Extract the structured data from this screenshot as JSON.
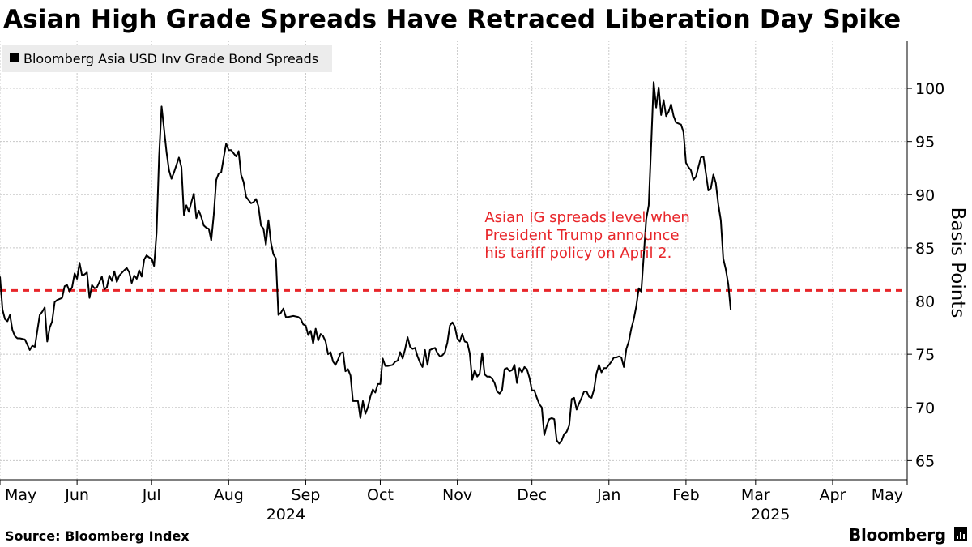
{
  "header": {
    "title": "Asian High Grade Spreads Have Retraced Liberation Day Spike"
  },
  "footer": {
    "source": "Source: Bloomberg Index",
    "brand": "Bloomberg"
  },
  "colors": {
    "line": "#000000",
    "reference": "#e8262a",
    "annotation": "#e8262a",
    "grid": "#c8c8c8",
    "legend_bg": "#ececec"
  },
  "chart_data": {
    "type": "line",
    "title": "Asian High Grade Spreads Have Retraced Liberation Day Spike",
    "legend": [
      "Bloomberg Asia USD Inv Grade Bond Spreads"
    ],
    "ylabel": "Basis Points",
    "ylim": [
      63,
      104
    ],
    "yticks": [
      65,
      70,
      75,
      80,
      85,
      90,
      95,
      100
    ],
    "xlim": [
      0,
      365
    ],
    "x_ticks": [
      {
        "day": 0,
        "label": "May"
      },
      {
        "day": 31,
        "label": "Jun"
      },
      {
        "day": 61,
        "label": "Jul"
      },
      {
        "day": 92,
        "label": "Aug"
      },
      {
        "day": 123,
        "label": "Sep"
      },
      {
        "day": 153,
        "label": "Oct"
      },
      {
        "day": 184,
        "label": "Nov"
      },
      {
        "day": 214,
        "label": "Dec"
      },
      {
        "day": 245,
        "label": "Jan"
      },
      {
        "day": 276,
        "label": "Feb"
      },
      {
        "day": 304,
        "label": "Mar"
      },
      {
        "day": 335,
        "label": "Apr"
      },
      {
        "day": 365,
        "label": "May"
      }
    ],
    "year_labels": [
      {
        "day": 115,
        "label": "2024"
      },
      {
        "day": 310,
        "label": "2025"
      }
    ],
    "reference_line": {
      "value": 81,
      "style": "dashed"
    },
    "annotation": {
      "lines": [
        "Asian IG spreads level when",
        "President Trump announce",
        "his tariff policy on April 2."
      ],
      "day": 195,
      "value": 86
    },
    "series": [
      {
        "name": "Bloomberg Asia USD Inv Grade Bond Spreads",
        "points": [
          [
            0,
            82.3
          ],
          [
            1,
            79.2
          ],
          [
            2,
            78.3
          ],
          [
            3,
            78.1
          ],
          [
            4,
            78.7
          ],
          [
            5,
            77.3
          ],
          [
            6,
            76.7
          ],
          [
            7,
            76.5
          ],
          [
            8,
            76.5
          ],
          [
            10,
            76.4
          ],
          [
            12,
            75.4
          ],
          [
            13,
            75.8
          ],
          [
            14,
            75.7
          ],
          [
            16,
            78.7
          ],
          [
            17,
            79.0
          ],
          [
            18,
            79.4
          ],
          [
            19,
            76.2
          ],
          [
            20,
            77.5
          ],
          [
            21,
            78.1
          ],
          [
            22,
            79.9
          ],
          [
            23,
            80.1
          ],
          [
            24,
            80.2
          ],
          [
            25,
            80.3
          ],
          [
            26,
            81.4
          ],
          [
            27,
            81.5
          ],
          [
            28,
            80.9
          ],
          [
            29,
            81.3
          ],
          [
            30,
            82.6
          ],
          [
            31,
            82.1
          ],
          [
            32,
            83.6
          ],
          [
            33,
            82.4
          ],
          [
            34,
            82.5
          ],
          [
            35,
            82.7
          ],
          [
            36,
            80.3
          ],
          [
            37,
            81.5
          ],
          [
            38,
            81.2
          ],
          [
            39,
            81.3
          ],
          [
            41,
            82.3
          ],
          [
            42,
            81.1
          ],
          [
            43,
            81.3
          ],
          [
            44,
            82.4
          ],
          [
            45,
            81.9
          ],
          [
            46,
            82.8
          ],
          [
            47,
            81.8
          ],
          [
            48,
            82.4
          ],
          [
            50,
            82.9
          ],
          [
            51,
            83.1
          ],
          [
            52,
            82.7
          ],
          [
            53,
            81.7
          ],
          [
            54,
            82.4
          ],
          [
            55,
            82.1
          ],
          [
            56,
            82.9
          ],
          [
            57,
            82.3
          ],
          [
            58,
            83.9
          ],
          [
            59,
            84.3
          ],
          [
            60,
            84.1
          ],
          [
            61,
            84.0
          ],
          [
            62,
            83.3
          ],
          [
            63,
            86.4
          ],
          [
            64,
            93.6
          ],
          [
            65,
            98.3
          ],
          [
            66,
            96.2
          ],
          [
            67,
            94.0
          ],
          [
            68,
            92.3
          ],
          [
            69,
            91.5
          ],
          [
            70,
            92.1
          ],
          [
            72,
            93.5
          ],
          [
            73,
            92.6
          ],
          [
            74,
            88.1
          ],
          [
            75,
            89.0
          ],
          [
            76,
            88.4
          ],
          [
            77,
            89.3
          ],
          [
            78,
            90.1
          ],
          [
            79,
            87.8
          ],
          [
            80,
            88.5
          ],
          [
            81,
            87.9
          ],
          [
            82,
            87.1
          ],
          [
            83,
            86.9
          ],
          [
            84,
            86.8
          ],
          [
            85,
            85.7
          ],
          [
            86,
            88.1
          ],
          [
            87,
            91.4
          ],
          [
            88,
            92.0
          ],
          [
            89,
            92.1
          ],
          [
            90,
            93.5
          ],
          [
            91,
            94.8
          ],
          [
            92,
            94.2
          ],
          [
            93,
            94.2
          ],
          [
            94,
            93.9
          ],
          [
            95,
            93.6
          ],
          [
            96,
            94.1
          ],
          [
            97,
            91.9
          ],
          [
            98,
            91.2
          ],
          [
            99,
            89.8
          ],
          [
            100,
            89.5
          ],
          [
            101,
            89.2
          ],
          [
            102,
            89.3
          ],
          [
            103,
            89.6
          ],
          [
            104,
            88.9
          ],
          [
            105,
            87.1
          ],
          [
            106,
            86.8
          ],
          [
            107,
            85.3
          ],
          [
            108,
            87.6
          ],
          [
            109,
            85.5
          ],
          [
            110,
            84.4
          ],
          [
            111,
            84.0
          ],
          [
            112,
            78.7
          ],
          [
            113,
            78.9
          ],
          [
            114,
            79.3
          ],
          [
            115,
            78.5
          ],
          [
            116,
            78.5
          ],
          [
            118,
            78.6
          ],
          [
            120,
            78.5
          ],
          [
            121,
            78.3
          ],
          [
            122,
            77.8
          ],
          [
            123,
            77.7
          ],
          [
            124,
            76.8
          ],
          [
            125,
            77.2
          ],
          [
            126,
            76.0
          ],
          [
            127,
            77.4
          ],
          [
            128,
            76.3
          ],
          [
            129,
            76.9
          ],
          [
            130,
            76.7
          ],
          [
            131,
            76.2
          ],
          [
            132,
            75.0
          ],
          [
            133,
            75.2
          ],
          [
            134,
            74.3
          ],
          [
            135,
            74.0
          ],
          [
            136,
            74.5
          ],
          [
            137,
            75.1
          ],
          [
            138,
            75.2
          ],
          [
            139,
            73.4
          ],
          [
            140,
            73.6
          ],
          [
            141,
            73.0
          ],
          [
            142,
            70.6
          ],
          [
            143,
            70.6
          ],
          [
            144,
            70.6
          ],
          [
            145,
            69.0
          ],
          [
            146,
            70.6
          ],
          [
            147,
            69.4
          ],
          [
            148,
            70.0
          ],
          [
            149,
            71.0
          ],
          [
            150,
            71.7
          ],
          [
            151,
            71.4
          ],
          [
            152,
            72.2
          ],
          [
            153,
            72.2
          ],
          [
            154,
            74.6
          ],
          [
            155,
            73.9
          ],
          [
            156,
            73.9
          ],
          [
            158,
            74.0
          ],
          [
            159,
            74.3
          ],
          [
            160,
            74.4
          ],
          [
            161,
            75.2
          ],
          [
            162,
            74.6
          ],
          [
            163,
            75.5
          ],
          [
            164,
            76.6
          ],
          [
            165,
            75.7
          ],
          [
            166,
            75.5
          ],
          [
            167,
            75.6
          ],
          [
            168,
            74.8
          ],
          [
            169,
            74.2
          ],
          [
            170,
            73.8
          ],
          [
            171,
            75.4
          ],
          [
            172,
            74.0
          ],
          [
            173,
            75.4
          ],
          [
            174,
            75.5
          ],
          [
            175,
            75.6
          ],
          [
            176,
            75.1
          ],
          [
            177,
            74.8
          ],
          [
            178,
            74.9
          ],
          [
            179,
            75.2
          ],
          [
            180,
            76.1
          ],
          [
            181,
            77.7
          ],
          [
            182,
            78.0
          ],
          [
            183,
            77.6
          ],
          [
            184,
            76.5
          ],
          [
            185,
            76.2
          ],
          [
            186,
            76.9
          ],
          [
            187,
            76.2
          ],
          [
            188,
            76.1
          ],
          [
            189,
            75.1
          ],
          [
            190,
            72.6
          ],
          [
            191,
            73.5
          ],
          [
            192,
            72.9
          ],
          [
            193,
            73.2
          ],
          [
            194,
            75.1
          ],
          [
            195,
            73.1
          ],
          [
            196,
            72.9
          ],
          [
            197,
            72.9
          ],
          [
            198,
            72.7
          ],
          [
            199,
            72.3
          ],
          [
            200,
            71.5
          ],
          [
            201,
            71.3
          ],
          [
            202,
            71.6
          ],
          [
            203,
            73.6
          ],
          [
            204,
            73.7
          ],
          [
            205,
            73.4
          ],
          [
            206,
            73.5
          ],
          [
            207,
            74.0
          ],
          [
            208,
            72.3
          ],
          [
            209,
            73.7
          ],
          [
            210,
            73.3
          ],
          [
            211,
            73.8
          ],
          [
            212,
            73.6
          ],
          [
            213,
            72.8
          ],
          [
            214,
            71.6
          ],
          [
            215,
            71.6
          ],
          [
            216,
            70.9
          ],
          [
            217,
            70.3
          ],
          [
            218,
            70.0
          ],
          [
            219,
            67.4
          ],
          [
            220,
            68.3
          ],
          [
            221,
            68.9
          ],
          [
            222,
            69.0
          ],
          [
            223,
            68.9
          ],
          [
            224,
            66.9
          ],
          [
            225,
            66.6
          ],
          [
            226,
            66.9
          ],
          [
            227,
            67.5
          ],
          [
            228,
            67.7
          ],
          [
            229,
            68.3
          ],
          [
            230,
            70.8
          ],
          [
            231,
            70.9
          ],
          [
            232,
            69.8
          ],
          [
            233,
            70.4
          ],
          [
            234,
            70.9
          ],
          [
            235,
            71.5
          ],
          [
            236,
            71.5
          ],
          [
            237,
            71.0
          ],
          [
            238,
            70.9
          ],
          [
            239,
            71.7
          ],
          [
            240,
            73.2
          ],
          [
            241,
            74.0
          ],
          [
            242,
            73.3
          ],
          [
            243,
            73.7
          ],
          [
            244,
            73.7
          ],
          [
            245,
            74.0
          ],
          [
            246,
            74.3
          ],
          [
            247,
            74.7
          ],
          [
            248,
            74.7
          ],
          [
            249,
            74.8
          ],
          [
            250,
            74.7
          ],
          [
            251,
            73.8
          ],
          [
            252,
            75.5
          ],
          [
            253,
            76.2
          ],
          [
            254,
            77.4
          ],
          [
            255,
            78.3
          ],
          [
            256,
            79.5
          ],
          [
            257,
            81.2
          ],
          [
            258,
            80.9
          ],
          [
            259,
            84.2
          ],
          [
            260,
            87.7
          ],
          [
            261,
            89.0
          ],
          [
            262,
            94.6
          ],
          [
            263,
            100.6
          ],
          [
            264,
            98.2
          ],
          [
            265,
            100.1
          ],
          [
            266,
            97.5
          ],
          [
            267,
            98.9
          ],
          [
            268,
            97.4
          ],
          [
            269,
            97.8
          ],
          [
            270,
            98.5
          ],
          [
            271,
            97.4
          ],
          [
            272,
            96.8
          ],
          [
            273,
            96.7
          ],
          [
            274,
            96.6
          ],
          [
            275,
            95.9
          ],
          [
            276,
            93.0
          ],
          [
            277,
            92.6
          ],
          [
            278,
            92.3
          ],
          [
            279,
            91.4
          ],
          [
            280,
            91.7
          ],
          [
            281,
            92.6
          ],
          [
            282,
            93.5
          ],
          [
            283,
            93.6
          ],
          [
            284,
            92.0
          ],
          [
            285,
            90.4
          ],
          [
            286,
            90.6
          ],
          [
            287,
            91.9
          ],
          [
            288,
            91.1
          ],
          [
            289,
            89.1
          ],
          [
            290,
            87.6
          ],
          [
            291,
            84.0
          ],
          [
            292,
            83.0
          ],
          [
            293,
            81.6
          ],
          [
            294,
            79.2
          ]
        ]
      }
    ]
  }
}
